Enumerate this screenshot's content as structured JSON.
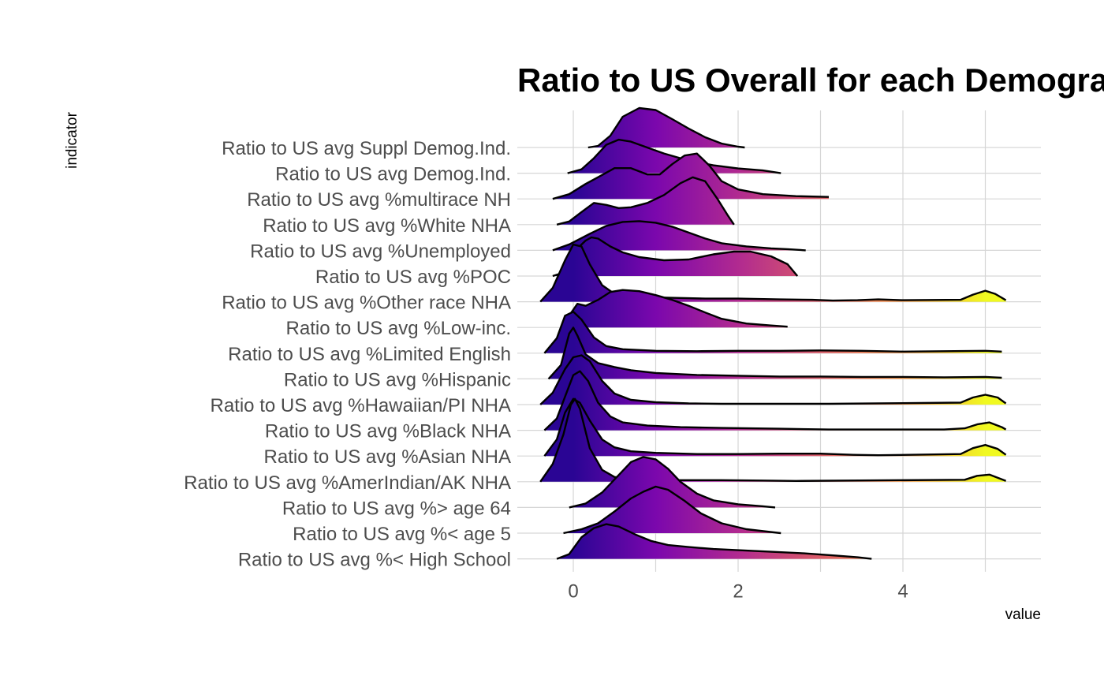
{
  "chart_data": {
    "type": "ridgeline",
    "title": "Ratio to US Overall for each Demograph",
    "xlabel": "value",
    "ylabel": "indicator",
    "xlim": [
      -0.7,
      5.6
    ],
    "x_ticks": [
      0,
      2,
      4
    ],
    "grid": true,
    "fill_gradient": {
      "stops": [
        {
          "value": 0,
          "color": "#2a0594"
        },
        {
          "value": 1,
          "color": "#7b07ad"
        },
        {
          "value": 2,
          "color": "#b12a90"
        },
        {
          "value": 3,
          "color": "#db5c68"
        },
        {
          "value": 4,
          "color": "#f89540"
        },
        {
          "value": 5,
          "color": "#f0f921"
        }
      ]
    },
    "series": [
      {
        "indicator": "Ratio to US avg Suppl Demog.Ind.",
        "density": [
          [
            0.18,
            0
          ],
          [
            0.3,
            0.04
          ],
          [
            0.45,
            0.3
          ],
          [
            0.6,
            0.78
          ],
          [
            0.8,
            1.0
          ],
          [
            1.0,
            0.95
          ],
          [
            1.2,
            0.72
          ],
          [
            1.4,
            0.48
          ],
          [
            1.6,
            0.26
          ],
          [
            1.8,
            0.1
          ],
          [
            2.0,
            0.02
          ],
          [
            2.08,
            0
          ]
        ]
      },
      {
        "indicator": "Ratio to US avg Demog.Ind.",
        "density": [
          [
            -0.07,
            0
          ],
          [
            0.1,
            0.1
          ],
          [
            0.25,
            0.38
          ],
          [
            0.4,
            0.72
          ],
          [
            0.55,
            0.85
          ],
          [
            0.7,
            0.8
          ],
          [
            0.9,
            0.65
          ],
          [
            1.1,
            0.5
          ],
          [
            1.4,
            0.32
          ],
          [
            1.7,
            0.2
          ],
          [
            2.0,
            0.12
          ],
          [
            2.3,
            0.07
          ],
          [
            2.52,
            0
          ]
        ]
      },
      {
        "indicator": "Ratio to US avg %multirace NH",
        "density": [
          [
            -0.25,
            0
          ],
          [
            -0.05,
            0.12
          ],
          [
            0.15,
            0.38
          ],
          [
            0.3,
            0.55
          ],
          [
            0.5,
            0.78
          ],
          [
            0.7,
            0.78
          ],
          [
            0.9,
            0.62
          ],
          [
            1.05,
            0.62
          ],
          [
            1.2,
            0.88
          ],
          [
            1.35,
            1.1
          ],
          [
            1.5,
            1.15
          ],
          [
            1.65,
            0.85
          ],
          [
            1.8,
            0.45
          ],
          [
            2.0,
            0.24
          ],
          [
            2.3,
            0.12
          ],
          [
            2.7,
            0.07
          ],
          [
            3.1,
            0.05
          ]
        ]
      },
      {
        "indicator": "Ratio to US avg %White NHA",
        "density": [
          [
            -0.2,
            0
          ],
          [
            -0.05,
            0.08
          ],
          [
            0.1,
            0.32
          ],
          [
            0.25,
            0.55
          ],
          [
            0.4,
            0.5
          ],
          [
            0.55,
            0.42
          ],
          [
            0.7,
            0.44
          ],
          [
            0.9,
            0.55
          ],
          [
            1.1,
            0.75
          ],
          [
            1.3,
            1.05
          ],
          [
            1.45,
            1.2
          ],
          [
            1.6,
            1.1
          ],
          [
            1.75,
            0.65
          ],
          [
            1.87,
            0.25
          ],
          [
            1.95,
            0
          ]
        ]
      },
      {
        "indicator": "Ratio to US avg %Unemployed",
        "density": [
          [
            -0.25,
            0
          ],
          [
            -0.05,
            0.15
          ],
          [
            0.2,
            0.42
          ],
          [
            0.4,
            0.62
          ],
          [
            0.6,
            0.72
          ],
          [
            0.8,
            0.74
          ],
          [
            1.0,
            0.7
          ],
          [
            1.2,
            0.6
          ],
          [
            1.4,
            0.45
          ],
          [
            1.6,
            0.3
          ],
          [
            1.8,
            0.18
          ],
          [
            2.1,
            0.1
          ],
          [
            2.4,
            0.05
          ],
          [
            2.6,
            0.03
          ],
          [
            2.82,
            0
          ]
        ]
      },
      {
        "indicator": "Ratio to US avg %POC",
        "density": [
          [
            -0.25,
            0
          ],
          [
            -0.1,
            0.1
          ],
          [
            0.05,
            0.7
          ],
          [
            0.15,
            0.9
          ],
          [
            0.22,
            0.98
          ],
          [
            0.3,
            0.95
          ],
          [
            0.45,
            0.75
          ],
          [
            0.6,
            0.6
          ],
          [
            0.8,
            0.48
          ],
          [
            1.1,
            0.4
          ],
          [
            1.4,
            0.42
          ],
          [
            1.7,
            0.55
          ],
          [
            1.95,
            0.62
          ],
          [
            2.15,
            0.62
          ],
          [
            2.4,
            0.5
          ],
          [
            2.6,
            0.3
          ],
          [
            2.72,
            0
          ]
        ]
      },
      {
        "indicator": "Ratio to US avg %Other race NHA",
        "density": [
          [
            -0.4,
            0
          ],
          [
            -0.25,
            0.35
          ],
          [
            -0.1,
            1.05
          ],
          [
            0.0,
            1.45
          ],
          [
            0.1,
            1.4
          ],
          [
            0.2,
            0.95
          ],
          [
            0.35,
            0.42
          ],
          [
            0.5,
            0.2
          ],
          [
            0.8,
            0.12
          ],
          [
            1.2,
            0.1
          ],
          [
            1.6,
            0.08
          ],
          [
            2.0,
            0.08
          ],
          [
            2.5,
            0.06
          ],
          [
            2.9,
            0.05
          ],
          [
            3.15,
            0.03
          ],
          [
            3.45,
            0.04
          ],
          [
            3.7,
            0.06
          ],
          [
            4.0,
            0.04
          ],
          [
            4.7,
            0.05
          ],
          [
            4.85,
            0.18
          ],
          [
            5.0,
            0.28
          ],
          [
            5.12,
            0.2
          ],
          [
            5.25,
            0.04
          ]
        ]
      },
      {
        "indicator": "Ratio to US avg %Low-inc.",
        "density": [
          [
            -0.12,
            0
          ],
          [
            -0.05,
            0.3
          ],
          [
            0.05,
            0.6
          ],
          [
            0.15,
            0.55
          ],
          [
            0.3,
            0.7
          ],
          [
            0.45,
            0.9
          ],
          [
            0.6,
            0.95
          ],
          [
            0.8,
            0.92
          ],
          [
            1.0,
            0.82
          ],
          [
            1.2,
            0.7
          ],
          [
            1.4,
            0.55
          ],
          [
            1.6,
            0.38
          ],
          [
            1.8,
            0.22
          ],
          [
            2.1,
            0.1
          ],
          [
            2.4,
            0.05
          ],
          [
            2.6,
            0.02
          ]
        ]
      },
      {
        "indicator": "Ratio to US avg %Limited English",
        "density": [
          [
            -0.35,
            0
          ],
          [
            -0.2,
            0.38
          ],
          [
            -0.1,
            0.95
          ],
          [
            0.0,
            1.05
          ],
          [
            0.1,
            0.85
          ],
          [
            0.25,
            0.4
          ],
          [
            0.4,
            0.18
          ],
          [
            0.6,
            0.1
          ],
          [
            1.0,
            0.06
          ],
          [
            1.5,
            0.05
          ],
          [
            2.0,
            0.06
          ],
          [
            2.5,
            0.06
          ],
          [
            3.0,
            0.07
          ],
          [
            3.5,
            0.06
          ],
          [
            4.0,
            0.04
          ],
          [
            4.5,
            0.05
          ],
          [
            5.0,
            0.06
          ],
          [
            5.2,
            0.04
          ]
        ]
      },
      {
        "indicator": "Ratio to US avg %Hispanic",
        "density": [
          [
            -0.3,
            0
          ],
          [
            -0.15,
            0.35
          ],
          [
            -0.05,
            1.15
          ],
          [
            0.0,
            1.3
          ],
          [
            0.05,
            1.1
          ],
          [
            0.15,
            0.62
          ],
          [
            0.3,
            0.4
          ],
          [
            0.5,
            0.3
          ],
          [
            0.7,
            0.22
          ],
          [
            1.0,
            0.15
          ],
          [
            1.5,
            0.1
          ],
          [
            2.0,
            0.08
          ],
          [
            2.5,
            0.06
          ],
          [
            3.0,
            0.06
          ],
          [
            3.5,
            0.05
          ],
          [
            4.0,
            0.05
          ],
          [
            4.5,
            0.04
          ],
          [
            5.0,
            0.05
          ],
          [
            5.2,
            0.03
          ]
        ]
      },
      {
        "indicator": "Ratio to US avg %Hawaiian/PI NHA",
        "density": [
          [
            -0.4,
            0
          ],
          [
            -0.25,
            0.3
          ],
          [
            -0.1,
            0.9
          ],
          [
            0.0,
            1.2
          ],
          [
            0.1,
            1.25
          ],
          [
            0.2,
            1.1
          ],
          [
            0.35,
            0.6
          ],
          [
            0.5,
            0.28
          ],
          [
            0.7,
            0.12
          ],
          [
            1.0,
            0.06
          ],
          [
            1.4,
            0.03
          ],
          [
            1.8,
            0.02
          ],
          [
            2.8,
            0.02
          ],
          [
            3.1,
            0.02
          ],
          [
            4.7,
            0.05
          ],
          [
            4.85,
            0.18
          ],
          [
            5.0,
            0.25
          ],
          [
            5.15,
            0.18
          ],
          [
            5.25,
            0.03
          ]
        ]
      },
      {
        "indicator": "Ratio to US avg %Black NHA",
        "density": [
          [
            -0.35,
            0
          ],
          [
            -0.2,
            0.3
          ],
          [
            -0.1,
            0.85
          ],
          [
            0.0,
            1.4
          ],
          [
            0.08,
            1.5
          ],
          [
            0.18,
            1.25
          ],
          [
            0.3,
            0.7
          ],
          [
            0.45,
            0.35
          ],
          [
            0.6,
            0.2
          ],
          [
            0.9,
            0.12
          ],
          [
            1.3,
            0.08
          ],
          [
            1.8,
            0.06
          ],
          [
            2.5,
            0.04
          ],
          [
            3.1,
            0.02
          ],
          [
            4.35,
            0.02
          ],
          [
            4.5,
            0.02
          ],
          [
            4.75,
            0.05
          ],
          [
            4.9,
            0.15
          ],
          [
            5.05,
            0.2
          ],
          [
            5.2,
            0.08
          ],
          [
            5.25,
            0.02
          ]
        ]
      },
      {
        "indicator": "Ratio to US avg %Asian NHA",
        "density": [
          [
            -0.35,
            0
          ],
          [
            -0.2,
            0.42
          ],
          [
            -0.1,
            1.1
          ],
          [
            0.0,
            1.45
          ],
          [
            0.08,
            1.35
          ],
          [
            0.2,
            0.9
          ],
          [
            0.35,
            0.42
          ],
          [
            0.5,
            0.22
          ],
          [
            0.7,
            0.12
          ],
          [
            1.0,
            0.08
          ],
          [
            1.5,
            0.05
          ],
          [
            2.0,
            0.05
          ],
          [
            2.5,
            0.06
          ],
          [
            3.0,
            0.06
          ],
          [
            3.4,
            0.03
          ],
          [
            3.7,
            0.02
          ],
          [
            4.7,
            0.05
          ],
          [
            4.85,
            0.2
          ],
          [
            5.0,
            0.28
          ],
          [
            5.15,
            0.18
          ],
          [
            5.25,
            0.03
          ]
        ]
      },
      {
        "indicator": "Ratio to US avg %AmerIndian/AK NHA",
        "density": [
          [
            -0.4,
            0
          ],
          [
            -0.25,
            0.45
          ],
          [
            -0.12,
            1.2
          ],
          [
            -0.03,
            1.95
          ],
          [
            0.02,
            2.1
          ],
          [
            0.08,
            1.85
          ],
          [
            0.2,
            0.85
          ],
          [
            0.35,
            0.3
          ],
          [
            0.5,
            0.12
          ],
          [
            0.8,
            0.06
          ],
          [
            1.2,
            0.04
          ],
          [
            1.8,
            0.04
          ],
          [
            2.3,
            0.03
          ],
          [
            2.7,
            0.02
          ],
          [
            4.75,
            0.05
          ],
          [
            4.9,
            0.15
          ],
          [
            5.05,
            0.18
          ],
          [
            5.2,
            0.06
          ],
          [
            5.25,
            0.02
          ]
        ]
      },
      {
        "indicator": "Ratio to US avg %> age 64",
        "density": [
          [
            -0.05,
            0
          ],
          [
            0.15,
            0.1
          ],
          [
            0.35,
            0.38
          ],
          [
            0.55,
            0.82
          ],
          [
            0.7,
            1.15
          ],
          [
            0.85,
            1.28
          ],
          [
            1.0,
            1.22
          ],
          [
            1.15,
            0.98
          ],
          [
            1.3,
            0.65
          ],
          [
            1.5,
            0.35
          ],
          [
            1.7,
            0.18
          ],
          [
            2.0,
            0.08
          ],
          [
            2.3,
            0.03
          ],
          [
            2.45,
            0
          ]
        ]
      },
      {
        "indicator": "Ratio to US avg %< age 5",
        "density": [
          [
            -0.12,
            0
          ],
          [
            0.1,
            0.1
          ],
          [
            0.3,
            0.25
          ],
          [
            0.5,
            0.55
          ],
          [
            0.7,
            0.88
          ],
          [
            0.85,
            1.05
          ],
          [
            1.0,
            1.18
          ],
          [
            1.15,
            1.1
          ],
          [
            1.35,
            0.82
          ],
          [
            1.55,
            0.5
          ],
          [
            1.8,
            0.25
          ],
          [
            2.1,
            0.1
          ],
          [
            2.35,
            0.04
          ],
          [
            2.52,
            0
          ]
        ]
      },
      {
        "indicator": "Ratio to US avg %< High School",
        "density": [
          [
            -0.2,
            0
          ],
          [
            -0.05,
            0.12
          ],
          [
            0.1,
            0.55
          ],
          [
            0.25,
            0.78
          ],
          [
            0.4,
            0.88
          ],
          [
            0.55,
            0.82
          ],
          [
            0.75,
            0.62
          ],
          [
            0.95,
            0.45
          ],
          [
            1.15,
            0.35
          ],
          [
            1.4,
            0.3
          ],
          [
            1.7,
            0.25
          ],
          [
            2.0,
            0.22
          ],
          [
            2.4,
            0.18
          ],
          [
            2.8,
            0.14
          ],
          [
            3.2,
            0.08
          ],
          [
            3.45,
            0.04
          ],
          [
            3.62,
            0
          ]
        ]
      }
    ]
  }
}
